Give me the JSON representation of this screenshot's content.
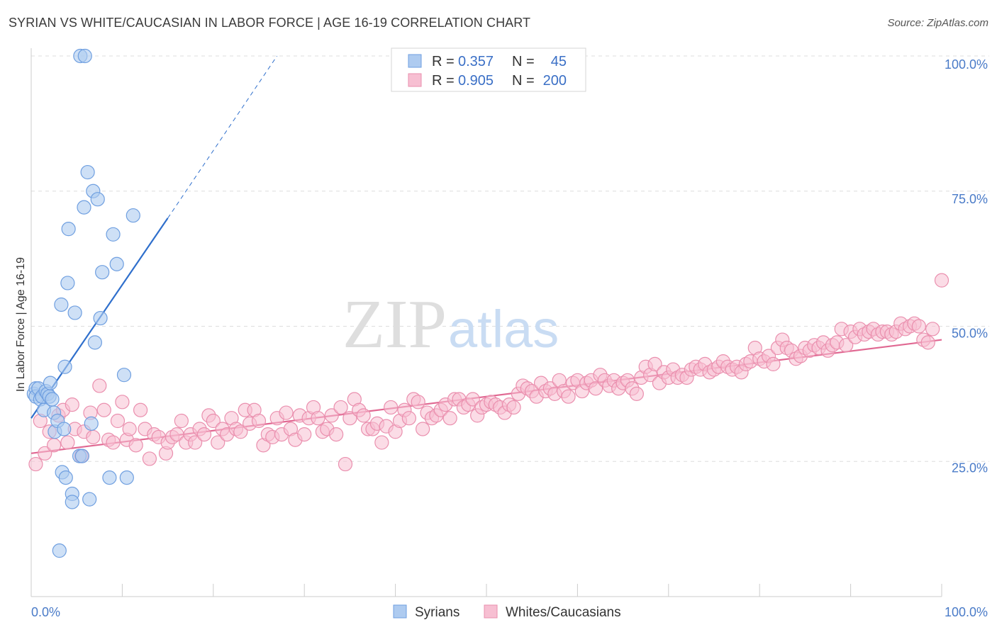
{
  "title": "SYRIAN VS WHITE/CAUCASIAN IN LABOR FORCE | AGE 16-19 CORRELATION CHART",
  "source": "Source: ZipAtlas.com",
  "watermark": {
    "zip": "ZIP",
    "atlas": "atlas"
  },
  "colors": {
    "blue_fill": "#aecbf0",
    "blue_stroke": "#6f9fe0",
    "blue_line": "#2f6fcc",
    "pink_fill": "#f7bfd2",
    "pink_stroke": "#ea8fae",
    "pink_line": "#e06892",
    "tick_text": "#4a7bc8",
    "grid": "#dedede"
  },
  "legend": {
    "rows": [
      {
        "r_label": "R =",
        "r_value": "0.357",
        "n_label": "N =",
        "n_value": "45",
        "swatch": "blue"
      },
      {
        "r_label": "R =",
        "r_value": "0.905",
        "n_label": "N =",
        "n_value": "200",
        "swatch": "pink"
      }
    ]
  },
  "chart_data": {
    "type": "scatter",
    "title": "SYRIAN VS WHITE/CAUCASIAN IN LABOR FORCE | AGE 16-19 CORRELATION CHART",
    "xlabel": "",
    "ylabel": "In Labor Force | Age 16-19",
    "xlim": [
      0,
      100
    ],
    "ylim": [
      0,
      105
    ],
    "x_ticks": [
      {
        "value": 0,
        "label": "0.0%"
      },
      {
        "value": 100,
        "label": "100.0%"
      }
    ],
    "y_ticks": [
      {
        "value": 25,
        "label": "25.0%"
      },
      {
        "value": 50,
        "label": "50.0%"
      },
      {
        "value": 75,
        "label": "75.0%"
      },
      {
        "value": 100,
        "label": "100.0%"
      }
    ],
    "grid": true,
    "legend_position": "top-center",
    "series": [
      {
        "name": "Syrians",
        "color": "blue",
        "r": 0.357,
        "n": 45,
        "trend": {
          "x0": 0,
          "y0": 33,
          "x1": 15,
          "y1": 70,
          "dash_to_x": 27,
          "dash_to_y": 100
        },
        "points": [
          [
            0.3,
            37.5
          ],
          [
            0.5,
            38.5
          ],
          [
            0.5,
            37
          ],
          [
            0.8,
            38.5
          ],
          [
            1.0,
            36.5
          ],
          [
            1.2,
            37.0
          ],
          [
            1.4,
            34.5
          ],
          [
            1.6,
            38.0
          ],
          [
            1.8,
            37.5
          ],
          [
            2.0,
            37.0
          ],
          [
            2.1,
            39.5
          ],
          [
            2.3,
            36.5
          ],
          [
            2.5,
            34.0
          ],
          [
            2.6,
            30.5
          ],
          [
            2.9,
            32.5
          ],
          [
            3.1,
            8.5
          ],
          [
            3.3,
            54.0
          ],
          [
            3.4,
            23.0
          ],
          [
            3.6,
            31.0
          ],
          [
            3.7,
            42.5
          ],
          [
            3.8,
            22.0
          ],
          [
            4.0,
            58.0
          ],
          [
            4.1,
            68.0
          ],
          [
            4.5,
            19.0
          ],
          [
            4.5,
            17.5
          ],
          [
            4.8,
            52.5
          ],
          [
            5.3,
            26.0
          ],
          [
            5.6,
            26.0
          ],
          [
            5.4,
            100.0
          ],
          [
            5.9,
            100.0
          ],
          [
            5.8,
            72.0
          ],
          [
            6.2,
            78.5
          ],
          [
            6.4,
            18.0
          ],
          [
            6.6,
            32.0
          ],
          [
            6.8,
            75.0
          ],
          [
            7.0,
            47.0
          ],
          [
            7.3,
            73.5
          ],
          [
            7.6,
            51.5
          ],
          [
            7.8,
            60.0
          ],
          [
            8.6,
            22.0
          ],
          [
            9.0,
            67.0
          ],
          [
            9.4,
            61.5
          ],
          [
            10.2,
            41.0
          ],
          [
            10.5,
            22.0
          ],
          [
            11.2,
            70.5
          ]
        ]
      },
      {
        "name": "Whites/Caucasians",
        "color": "pink",
        "r": 0.905,
        "n": 200,
        "trend": {
          "x0": 0,
          "y0": 26.5,
          "x1": 100,
          "y1": 47.5
        },
        "points": [
          [
            0.5,
            24.5
          ],
          [
            1.0,
            32.5
          ],
          [
            1.5,
            26.5
          ],
          [
            2.0,
            30.5
          ],
          [
            2.5,
            28.0
          ],
          [
            3.0,
            33.5
          ],
          [
            3.5,
            34.5
          ],
          [
            4.0,
            28.5
          ],
          [
            4.5,
            35.5
          ],
          [
            4.8,
            31.0
          ],
          [
            5.5,
            26.0
          ],
          [
            5.8,
            30.5
          ],
          [
            6.5,
            34.0
          ],
          [
            6.8,
            29.5
          ],
          [
            7.5,
            39.0
          ],
          [
            8.0,
            34.5
          ],
          [
            8.5,
            29.0
          ],
          [
            9.0,
            28.5
          ],
          [
            9.5,
            32.5
          ],
          [
            10.0,
            36.0
          ],
          [
            10.5,
            29.0
          ],
          [
            10.8,
            31.0
          ],
          [
            11.5,
            28.0
          ],
          [
            12.0,
            34.5
          ],
          [
            12.5,
            31.0
          ],
          [
            13.0,
            25.5
          ],
          [
            13.5,
            30.0
          ],
          [
            14.0,
            29.5
          ],
          [
            14.8,
            26.5
          ],
          [
            15.0,
            28.5
          ],
          [
            15.5,
            29.5
          ],
          [
            16.0,
            30.0
          ],
          [
            16.5,
            32.5
          ],
          [
            17.0,
            28.5
          ],
          [
            17.5,
            30.0
          ],
          [
            18.0,
            28.5
          ],
          [
            18.5,
            31.0
          ],
          [
            19.0,
            30.0
          ],
          [
            19.5,
            33.5
          ],
          [
            20.0,
            32.5
          ],
          [
            20.5,
            28.5
          ],
          [
            21.0,
            31.0
          ],
          [
            21.5,
            30.0
          ],
          [
            22.0,
            33.0
          ],
          [
            22.5,
            31.0
          ],
          [
            23.0,
            30.5
          ],
          [
            23.5,
            34.5
          ],
          [
            24.0,
            32.0
          ],
          [
            24.5,
            34.5
          ],
          [
            25.0,
            32.5
          ],
          [
            25.5,
            28.0
          ],
          [
            26.0,
            30.0
          ],
          [
            26.5,
            29.5
          ],
          [
            27.0,
            33.0
          ],
          [
            27.5,
            30.0
          ],
          [
            28.0,
            34.0
          ],
          [
            28.5,
            31.0
          ],
          [
            29.0,
            29.0
          ],
          [
            29.5,
            33.5
          ],
          [
            30.0,
            30.0
          ],
          [
            30.5,
            33.0
          ],
          [
            31.0,
            35.0
          ],
          [
            31.5,
            33.0
          ],
          [
            32.0,
            30.5
          ],
          [
            32.5,
            31.0
          ],
          [
            33.0,
            33.5
          ],
          [
            33.5,
            30.0
          ],
          [
            34.0,
            35.0
          ],
          [
            34.5,
            24.5
          ],
          [
            35.0,
            33.0
          ],
          [
            35.5,
            36.5
          ],
          [
            36.0,
            34.5
          ],
          [
            36.5,
            33.5
          ],
          [
            37.0,
            31.0
          ],
          [
            37.5,
            31.0
          ],
          [
            38.0,
            32.0
          ],
          [
            38.5,
            28.5
          ],
          [
            39.0,
            31.5
          ],
          [
            39.5,
            35.0
          ],
          [
            40.0,
            30.5
          ],
          [
            40.5,
            32.5
          ],
          [
            41.0,
            34.5
          ],
          [
            41.5,
            33.0
          ],
          [
            42.0,
            36.5
          ],
          [
            42.5,
            36.0
          ],
          [
            43.0,
            31.0
          ],
          [
            43.5,
            34.0
          ],
          [
            44.0,
            33.0
          ],
          [
            44.5,
            33.5
          ],
          [
            45.0,
            34.5
          ],
          [
            45.5,
            35.5
          ],
          [
            46.0,
            33.0
          ],
          [
            46.5,
            36.5
          ],
          [
            47.0,
            36.5
          ],
          [
            47.5,
            35.0
          ],
          [
            48.0,
            35.5
          ],
          [
            48.5,
            36.5
          ],
          [
            49.0,
            33.5
          ],
          [
            49.5,
            35.0
          ],
          [
            50.0,
            35.5
          ],
          [
            50.5,
            36.0
          ],
          [
            51.0,
            35.5
          ],
          [
            51.5,
            35.0
          ],
          [
            52.0,
            34.0
          ],
          [
            52.5,
            35.5
          ],
          [
            53.0,
            35.0
          ],
          [
            53.5,
            37.5
          ],
          [
            54.0,
            39.0
          ],
          [
            54.5,
            38.5
          ],
          [
            55.0,
            38.0
          ],
          [
            55.5,
            37.0
          ],
          [
            56.0,
            39.5
          ],
          [
            56.5,
            38.0
          ],
          [
            57.0,
            38.5
          ],
          [
            57.5,
            37.5
          ],
          [
            58.0,
            40.0
          ],
          [
            58.5,
            38.0
          ],
          [
            59.0,
            37.0
          ],
          [
            59.5,
            39.5
          ],
          [
            60.0,
            40.0
          ],
          [
            60.5,
            38.0
          ],
          [
            61.0,
            39.5
          ],
          [
            61.5,
            40.0
          ],
          [
            62.0,
            38.5
          ],
          [
            62.5,
            41.0
          ],
          [
            63.0,
            40.0
          ],
          [
            63.5,
            39.0
          ],
          [
            64.0,
            40.0
          ],
          [
            64.5,
            38.5
          ],
          [
            65.0,
            39.5
          ],
          [
            65.5,
            40.0
          ],
          [
            66.0,
            38.5
          ],
          [
            66.5,
            37.5
          ],
          [
            67.0,
            40.5
          ],
          [
            67.5,
            42.5
          ],
          [
            68.0,
            41.0
          ],
          [
            68.5,
            43.0
          ],
          [
            69.0,
            39.5
          ],
          [
            69.5,
            41.5
          ],
          [
            70.0,
            40.5
          ],
          [
            70.5,
            42.0
          ],
          [
            71.0,
            40.5
          ],
          [
            71.5,
            41.0
          ],
          [
            72.0,
            40.5
          ],
          [
            72.5,
            42.0
          ],
          [
            73.0,
            42.5
          ],
          [
            73.5,
            42.0
          ],
          [
            74.0,
            43.0
          ],
          [
            74.5,
            41.5
          ],
          [
            75.0,
            42.0
          ],
          [
            75.5,
            42.5
          ],
          [
            76.0,
            43.5
          ],
          [
            76.5,
            42.5
          ],
          [
            77.0,
            42.0
          ],
          [
            77.5,
            42.5
          ],
          [
            78.0,
            41.5
          ],
          [
            78.5,
            43.0
          ],
          [
            79.0,
            43.5
          ],
          [
            79.5,
            46.0
          ],
          [
            80.0,
            44.0
          ],
          [
            80.5,
            43.5
          ],
          [
            81.0,
            44.5
          ],
          [
            81.5,
            43.0
          ],
          [
            82.0,
            46.0
          ],
          [
            82.5,
            47.5
          ],
          [
            83.0,
            46.0
          ],
          [
            83.5,
            45.5
          ],
          [
            84.0,
            44.0
          ],
          [
            84.5,
            44.5
          ],
          [
            85.0,
            46.0
          ],
          [
            85.5,
            45.5
          ],
          [
            86.0,
            46.5
          ],
          [
            86.5,
            46.0
          ],
          [
            87.0,
            47.0
          ],
          [
            87.5,
            45.5
          ],
          [
            88.0,
            46.5
          ],
          [
            88.5,
            47.0
          ],
          [
            89.0,
            49.5
          ],
          [
            89.5,
            46.5
          ],
          [
            90.0,
            49.0
          ],
          [
            90.5,
            48.0
          ],
          [
            91.0,
            49.5
          ],
          [
            91.5,
            48.5
          ],
          [
            92.0,
            49.0
          ],
          [
            92.5,
            49.5
          ],
          [
            93.0,
            48.5
          ],
          [
            93.5,
            49.0
          ],
          [
            94.0,
            49.0
          ],
          [
            94.5,
            48.5
          ],
          [
            95.0,
            49.0
          ],
          [
            95.5,
            50.5
          ],
          [
            96.0,
            49.5
          ],
          [
            96.5,
            50.0
          ],
          [
            97.0,
            50.5
          ],
          [
            97.5,
            50.0
          ],
          [
            98.0,
            47.5
          ],
          [
            98.5,
            47.0
          ],
          [
            99.0,
            49.5
          ],
          [
            100.0,
            58.5
          ]
        ]
      }
    ]
  },
  "bottom_legend": [
    {
      "label": "Syrians",
      "swatch": "blue"
    },
    {
      "label": "Whites/Caucasians",
      "swatch": "pink"
    }
  ]
}
